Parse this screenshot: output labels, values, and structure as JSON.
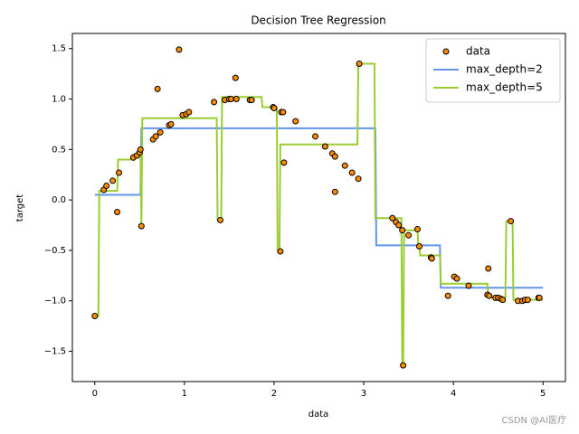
{
  "chart_data": {
    "type": "scatter",
    "title": "Decision Tree Regression",
    "x_label": "data",
    "y_label": "target",
    "xlim": [
      -0.25,
      5.25
    ],
    "ylim": [
      -1.8,
      1.65
    ],
    "xticks": [
      0,
      1,
      2,
      3,
      4,
      5
    ],
    "yticks": [
      {
        "value": -1.5,
        "label": "−1.5"
      },
      {
        "value": -1.0,
        "label": "−1.0"
      },
      {
        "value": -0.5,
        "label": "−0.5"
      },
      {
        "value": 0.0,
        "label": "0.0"
      },
      0.5,
      {
        "value": 1.0,
        "label": "1.0"
      },
      1.5
    ],
    "legend": "upper right",
    "series": [
      {
        "name": "data",
        "type": "scatter",
        "color": "darkorange",
        "x": [
          0.0,
          0.1,
          0.13,
          0.2,
          0.25,
          0.27,
          0.43,
          0.47,
          0.5,
          0.51,
          0.52,
          0.65,
          0.68,
          0.7,
          0.73,
          0.83,
          0.85,
          0.94,
          0.98,
          1.02,
          1.05,
          1.33,
          1.4,
          1.45,
          1.5,
          1.52,
          1.57,
          1.58,
          1.73,
          1.75,
          1.99,
          2.0,
          2.07,
          2.08,
          2.1,
          2.11,
          2.24,
          2.46,
          2.57,
          2.65,
          2.68,
          2.68,
          2.79,
          2.87,
          2.94,
          2.95,
          3.32,
          3.36,
          3.39,
          3.43,
          3.44,
          3.5,
          3.6,
          3.62,
          3.75,
          3.76,
          3.94,
          4.01,
          4.04,
          4.17,
          4.38,
          4.39,
          4.4,
          4.47,
          4.5,
          4.53,
          4.55,
          4.64,
          4.72,
          4.77,
          4.8,
          4.83,
          4.95,
          4.96
        ],
        "values": [
          -1.15,
          0.1,
          0.14,
          0.19,
          -0.12,
          0.27,
          0.42,
          0.44,
          0.47,
          0.5,
          -0.26,
          0.6,
          0.63,
          1.1,
          0.67,
          0.74,
          0.75,
          1.49,
          0.84,
          0.85,
          0.87,
          0.97,
          -0.2,
          0.99,
          1.0,
          1.0,
          1.21,
          1.0,
          0.99,
          0.99,
          0.92,
          0.91,
          -0.51,
          0.87,
          0.87,
          0.37,
          0.78,
          0.63,
          0.53,
          0.46,
          0.43,
          0.08,
          0.34,
          0.27,
          0.21,
          1.35,
          -0.18,
          -0.22,
          -0.25,
          -0.3,
          -1.64,
          -0.35,
          -0.29,
          -0.46,
          -0.57,
          -0.58,
          -0.95,
          -0.76,
          -0.78,
          -0.85,
          -0.94,
          -0.68,
          -0.95,
          -0.97,
          -0.97,
          -0.98,
          -0.99,
          -0.21,
          -1.0,
          -1.0,
          -0.99,
          -0.99,
          -0.97,
          -0.97
        ]
      },
      {
        "name": "max_depth=2",
        "type": "line",
        "color": "cornflowerblue",
        "x": [
          0,
          0.51,
          0.52,
          3.13,
          3.14,
          3.85,
          3.86,
          5
        ],
        "values": [
          0.05,
          0.05,
          0.71,
          0.71,
          -0.45,
          -0.45,
          -0.87,
          -0.87
        ]
      },
      {
        "name": "max_depth=5",
        "type": "line",
        "color": "yellowgreen",
        "x": [
          0,
          0.04,
          0.05,
          0.25,
          0.26,
          0.42,
          0.43,
          0.5,
          0.51,
          0.52,
          0.53,
          1.36,
          1.37,
          1.41,
          1.42,
          1.86,
          1.87,
          2.03,
          2.04,
          2.06,
          2.07,
          2.93,
          2.94,
          3.12,
          3.13,
          3.42,
          3.43,
          3.44,
          3.45,
          3.6,
          3.61,
          3.62,
          3.63,
          3.85,
          3.86,
          4.38,
          4.39,
          4.42,
          4.43,
          4.58,
          4.59,
          4.66,
          4.67,
          5
        ],
        "values": [
          -1.15,
          -1.15,
          0.09,
          0.09,
          0.4,
          0.4,
          0.45,
          0.45,
          0.5,
          -0.26,
          0.81,
          0.81,
          -0.2,
          -0.2,
          1.02,
          1.02,
          0.92,
          0.92,
          -0.51,
          -0.51,
          0.55,
          0.55,
          1.35,
          1.35,
          -0.18,
          -0.18,
          -1.64,
          -1.64,
          -0.3,
          -0.3,
          -0.46,
          -0.46,
          -0.55,
          -0.55,
          -0.83,
          -0.83,
          -0.95,
          -0.95,
          -0.97,
          -0.97,
          -0.21,
          -0.21,
          -0.99,
          -0.99
        ]
      }
    ],
    "watermark": "CSDN @AI医疗"
  }
}
